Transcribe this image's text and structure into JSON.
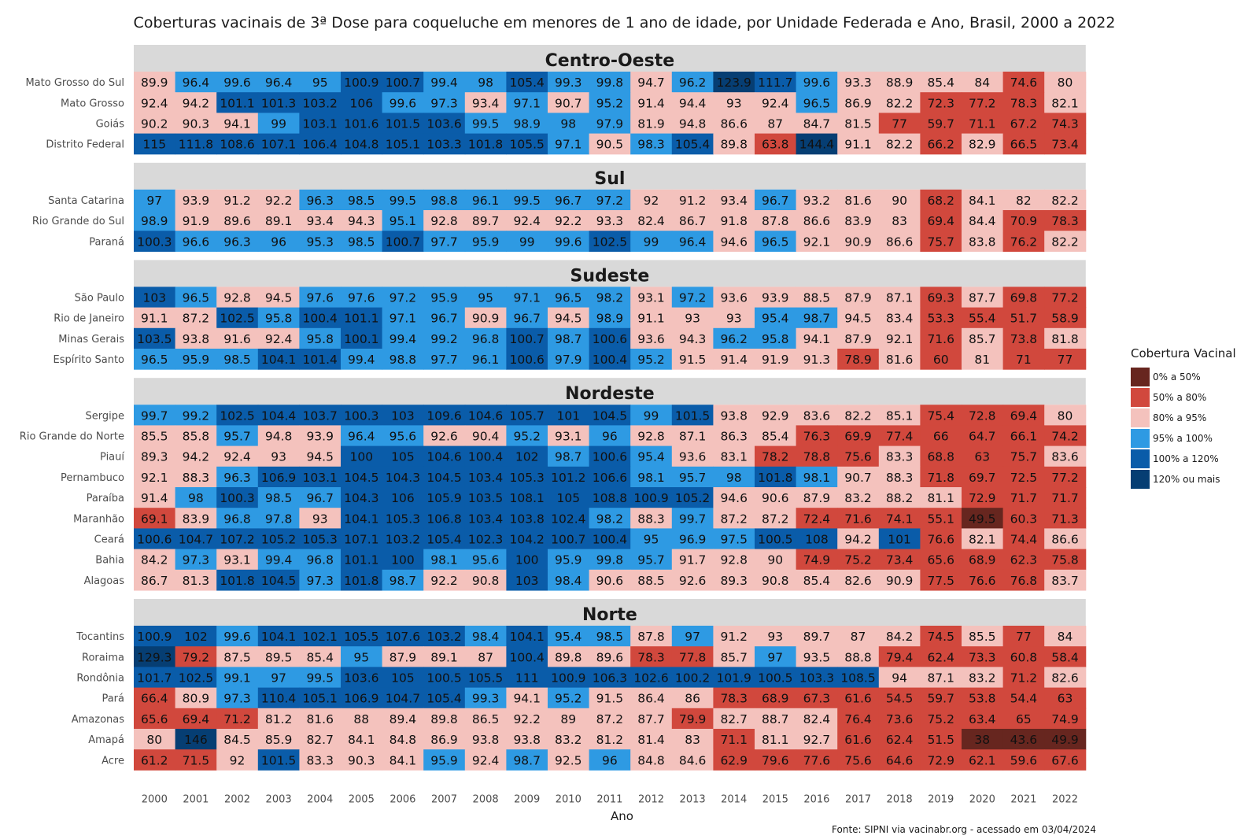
{
  "chart_data": {
    "type": "heatmap",
    "title": "Coberturas vacinais de 3ª Dose para coqueluche em menores de 1 ano de idade, por Unidade Federada e Ano, Brasil, 2000 a 2022",
    "xlabel": "Ano",
    "ylabel": "",
    "years": [
      "2000",
      "2001",
      "2002",
      "2003",
      "2004",
      "2005",
      "2006",
      "2007",
      "2008",
      "2009",
      "2010",
      "2011",
      "2012",
      "2013",
      "2014",
      "2015",
      "2016",
      "2017",
      "2018",
      "2019",
      "2020",
      "2021",
      "2022"
    ],
    "legend": {
      "title": "Cobertura Vacinal",
      "items": [
        {
          "label": "0% a 50%",
          "color": "#67261f"
        },
        {
          "label": "50% a 80%",
          "color": "#d1483d"
        },
        {
          "label": "80% a 95%",
          "color": "#f4c2bd"
        },
        {
          "label": "95% a 100%",
          "color": "#2e9ae3"
        },
        {
          "label": "100% a 120%",
          "color": "#0a5ca9"
        },
        {
          "label": "120% ou mais",
          "color": "#063e73"
        }
      ]
    },
    "regions": [
      {
        "name": "Centro-Oeste",
        "rows": [
          {
            "state": "Mato Grosso do Sul",
            "values": [
              89.9,
              96.4,
              99.6,
              96.4,
              95,
              100.9,
              100.7,
              99.4,
              98,
              105.4,
              99.3,
              99.8,
              94.7,
              96.2,
              123.9,
              111.7,
              99.6,
              93.3,
              88.9,
              85.4,
              84,
              74.6,
              80
            ]
          },
          {
            "state": "Mato Grosso",
            "values": [
              92.4,
              94.2,
              101.1,
              101.3,
              103.2,
              106,
              99.6,
              97.3,
              93.4,
              97.1,
              90.7,
              95.2,
              91.4,
              94.4,
              93,
              92.4,
              96.5,
              86.9,
              82.2,
              72.3,
              77.2,
              78.3,
              82.1
            ]
          },
          {
            "state": "Goiás",
            "values": [
              90.2,
              90.3,
              94.1,
              99,
              103.1,
              101.6,
              101.5,
              103.6,
              99.5,
              98.9,
              98,
              97.9,
              81.9,
              94.8,
              86.6,
              87,
              84.7,
              81.5,
              77,
              59.7,
              71.1,
              67.2,
              74.3
            ]
          },
          {
            "state": "Distrito Federal",
            "values": [
              115,
              111.8,
              108.6,
              107.1,
              106.4,
              104.8,
              105.1,
              103.3,
              101.8,
              105.5,
              97.1,
              90.5,
              98.3,
              105.4,
              89.8,
              63.8,
              144.4,
              91.1,
              82.2,
              66.2,
              82.9,
              66.5,
              73.4
            ]
          }
        ]
      },
      {
        "name": "Sul",
        "rows": [
          {
            "state": "Santa Catarina",
            "values": [
              97,
              93.9,
              91.2,
              92.2,
              96.3,
              98.5,
              99.5,
              98.8,
              96.1,
              99.5,
              96.7,
              97.2,
              92,
              91.2,
              93.4,
              96.7,
              93.2,
              81.6,
              90,
              68.2,
              84.1,
              82,
              82.2
            ]
          },
          {
            "state": "Rio Grande do Sul",
            "values": [
              98.9,
              91.9,
              89.6,
              89.1,
              93.4,
              94.3,
              95.1,
              92.8,
              89.7,
              92.4,
              92.2,
              93.3,
              82.4,
              86.7,
              91.8,
              87.8,
              86.6,
              83.9,
              83,
              69.4,
              84.4,
              70.9,
              78.3
            ]
          },
          {
            "state": "Paraná",
            "values": [
              100.3,
              96.6,
              96.3,
              96,
              95.3,
              98.5,
              100.7,
              97.7,
              95.9,
              99,
              99.6,
              102.5,
              99,
              96.4,
              94.6,
              96.5,
              92.1,
              90.9,
              86.6,
              75.7,
              83.8,
              76.2,
              82.2
            ]
          }
        ]
      },
      {
        "name": "Sudeste",
        "rows": [
          {
            "state": "São Paulo",
            "values": [
              103,
              96.5,
              92.8,
              94.5,
              97.6,
              97.6,
              97.2,
              95.9,
              95,
              97.1,
              96.5,
              98.2,
              93.1,
              97.2,
              93.6,
              93.9,
              88.5,
              87.9,
              87.1,
              69.3,
              87.7,
              69.8,
              77.2
            ]
          },
          {
            "state": "Rio de Janeiro",
            "values": [
              91.1,
              87.2,
              102.5,
              95.8,
              100.4,
              101.1,
              97.1,
              96.7,
              90.9,
              96.7,
              94.5,
              98.9,
              91.1,
              93,
              93,
              95.4,
              98.7,
              94.5,
              83.4,
              53.3,
              55.4,
              51.7,
              58.9
            ]
          },
          {
            "state": "Minas Gerais",
            "values": [
              103.5,
              93.8,
              91.6,
              92.4,
              95.8,
              100.1,
              99.4,
              99.2,
              96.8,
              100.7,
              98.7,
              100.6,
              93.6,
              94.3,
              96.2,
              95.8,
              94.1,
              87.9,
              92.1,
              71.6,
              85.7,
              73.8,
              81.8
            ]
          },
          {
            "state": "Espírito Santo",
            "values": [
              96.5,
              95.9,
              98.5,
              104.1,
              101.4,
              99.4,
              98.8,
              97.7,
              96.1,
              100.6,
              97.9,
              100.4,
              95.2,
              91.5,
              91.4,
              91.9,
              91.3,
              78.9,
              81.6,
              60,
              81,
              71,
              77
            ]
          }
        ]
      },
      {
        "name": "Nordeste",
        "rows": [
          {
            "state": "Sergipe",
            "values": [
              99.7,
              99.2,
              102.5,
              104.4,
              103.7,
              100.3,
              103,
              109.6,
              104.6,
              105.7,
              101,
              104.5,
              99,
              101.5,
              93.8,
              92.9,
              83.6,
              82.2,
              85.1,
              75.4,
              72.8,
              69.4,
              80
            ]
          },
          {
            "state": "Rio Grande do Norte",
            "values": [
              85.5,
              85.8,
              95.7,
              94.8,
              93.9,
              96.4,
              95.6,
              92.6,
              90.4,
              95.2,
              93.1,
              96,
              92.8,
              87.1,
              86.3,
              85.4,
              76.3,
              69.9,
              77.4,
              66,
              64.7,
              66.1,
              74.2
            ]
          },
          {
            "state": "Piauí",
            "values": [
              89.3,
              94.2,
              92.4,
              93,
              94.5,
              100,
              105,
              104.6,
              100.4,
              102,
              98.7,
              100.6,
              95.4,
              93.6,
              83.1,
              78.2,
              78.8,
              75.6,
              83.3,
              68.8,
              63,
              75.7,
              83.6
            ]
          },
          {
            "state": "Pernambuco",
            "values": [
              92.1,
              88.3,
              96.3,
              106.9,
              103.1,
              104.5,
              104.3,
              104.5,
              103.4,
              105.3,
              101.2,
              106.6,
              98.1,
              95.7,
              98,
              101.8,
              98.1,
              90.7,
              88.3,
              71.8,
              69.7,
              72.5,
              77.2
            ]
          },
          {
            "state": "Paraíba",
            "values": [
              91.4,
              98,
              100.3,
              98.5,
              96.7,
              104.3,
              106,
              105.9,
              103.5,
              108.1,
              105,
              108.8,
              100.9,
              105.2,
              94.6,
              90.6,
              87.9,
              83.2,
              88.2,
              81.1,
              72.9,
              71.7,
              71.7
            ]
          },
          {
            "state": "Maranhão",
            "values": [
              69.1,
              83.9,
              96.8,
              97.8,
              93,
              104.1,
              105.3,
              106.8,
              103.4,
              103.8,
              102.4,
              98.2,
              88.3,
              99.7,
              87.2,
              87.2,
              72.4,
              71.6,
              74.1,
              55.1,
              49.5,
              60.3,
              71.3
            ]
          },
          {
            "state": "Ceará",
            "values": [
              100.6,
              104.7,
              107.2,
              105.2,
              105.3,
              107.1,
              103.2,
              105.4,
              102.3,
              104.2,
              100.7,
              100.4,
              95,
              96.9,
              97.5,
              100.5,
              108,
              94.2,
              101,
              76.6,
              82.1,
              74.4,
              86.6
            ]
          },
          {
            "state": "Bahia",
            "values": [
              84.2,
              97.3,
              93.1,
              99.4,
              96.8,
              101.1,
              100,
              98.1,
              95.6,
              100,
              95.9,
              99.8,
              95.7,
              91.7,
              92.8,
              90,
              74.9,
              75.2,
              73.4,
              65.6,
              68.9,
              62.3,
              75.8
            ]
          },
          {
            "state": "Alagoas",
            "values": [
              86.7,
              81.3,
              101.8,
              104.5,
              97.3,
              101.8,
              98.7,
              92.2,
              90.8,
              103,
              98.4,
              90.6,
              88.5,
              92.6,
              89.3,
              90.8,
              85.4,
              82.6,
              90.9,
              77.5,
              76.6,
              76.8,
              83.7
            ]
          }
        ]
      },
      {
        "name": "Norte",
        "rows": [
          {
            "state": "Tocantins",
            "values": [
              100.9,
              102,
              99.6,
              104.1,
              102.1,
              105.5,
              107.6,
              103.2,
              98.4,
              104.1,
              95.4,
              98.5,
              87.8,
              97,
              91.2,
              93,
              89.7,
              87,
              84.2,
              74.5,
              85.5,
              77,
              84
            ]
          },
          {
            "state": "Roraima",
            "values": [
              129.3,
              79.2,
              87.5,
              89.5,
              85.4,
              95,
              87.9,
              89.1,
              87,
              100.4,
              89.8,
              89.6,
              78.3,
              77.8,
              85.7,
              97,
              93.5,
              88.8,
              79.4,
              62.4,
              73.3,
              60.8,
              58.4
            ]
          },
          {
            "state": "Rondônia",
            "values": [
              101.7,
              102.5,
              99.1,
              97,
              99.5,
              103.6,
              105,
              100.5,
              105.5,
              111,
              100.9,
              106.3,
              102.6,
              100.2,
              101.9,
              100.5,
              103.3,
              108.5,
              94,
              87.1,
              83.2,
              71.2,
              82.6
            ]
          },
          {
            "state": "Pará",
            "values": [
              66.4,
              80.9,
              97.3,
              110.4,
              105.1,
              106.9,
              104.7,
              105.4,
              99.3,
              94.1,
              95.2,
              91.5,
              86.4,
              86,
              78.3,
              68.9,
              67.3,
              61.6,
              54.5,
              59.7,
              53.8,
              54.4,
              63
            ]
          },
          {
            "state": "Amazonas",
            "values": [
              65.6,
              69.4,
              71.2,
              81.2,
              81.6,
              88,
              89.4,
              89.8,
              86.5,
              92.2,
              89,
              87.2,
              87.7,
              79.9,
              82.7,
              88.7,
              82.4,
              76.4,
              73.6,
              75.2,
              63.4,
              65,
              74.9
            ]
          },
          {
            "state": "Amapá",
            "values": [
              80,
              146,
              84.5,
              85.9,
              82.7,
              84.1,
              84.8,
              86.9,
              93.8,
              93.8,
              83.2,
              81.2,
              81.4,
              83,
              71.1,
              81.1,
              92.7,
              61.6,
              62.4,
              51.5,
              38,
              43.6,
              49.9
            ]
          },
          {
            "state": "Acre",
            "values": [
              61.2,
              71.5,
              92,
              101.5,
              83.3,
              90.3,
              84.1,
              95.9,
              92.4,
              98.7,
              92.5,
              96,
              84.8,
              84.6,
              62.9,
              79.6,
              77.6,
              75.6,
              64.6,
              72.9,
              62.1,
              59.6,
              67.6
            ]
          }
        ]
      }
    ],
    "source": "Fonte: SIPNI via vacinabr.org - acessado em 03/04/2024"
  }
}
